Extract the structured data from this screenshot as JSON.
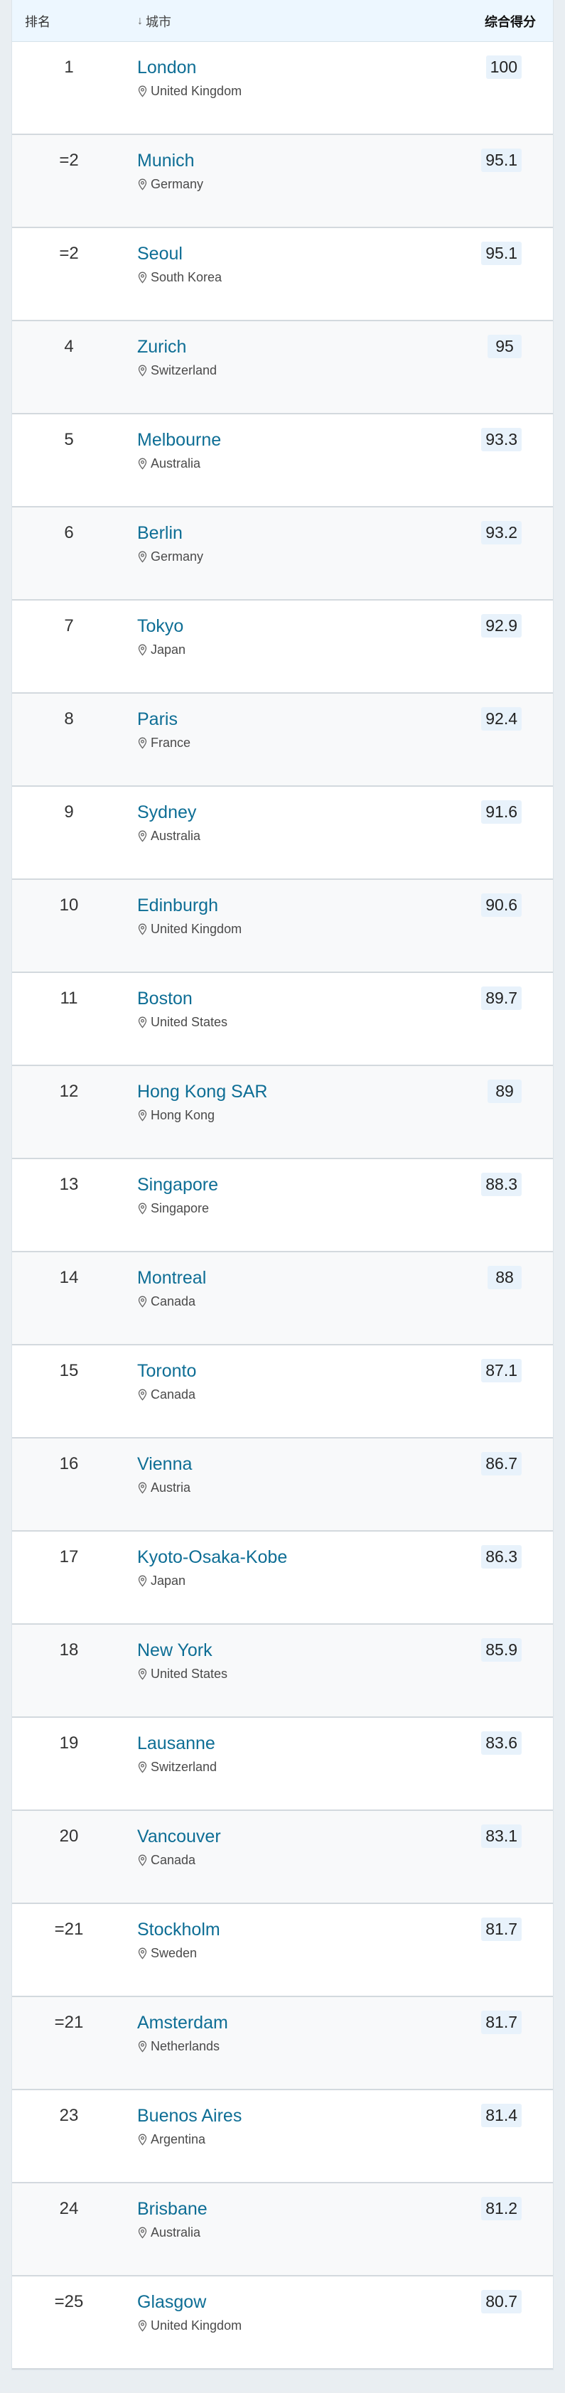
{
  "header": {
    "rank": "排名",
    "city": "城市",
    "score": "综合得分",
    "sort_icon": "arrow-down-icon"
  },
  "rows": [
    {
      "rank": "1",
      "city": "London",
      "country": "United Kingdom",
      "score": "100"
    },
    {
      "rank": "=2",
      "city": "Munich",
      "country": "Germany",
      "score": "95.1"
    },
    {
      "rank": "=2",
      "city": "Seoul",
      "country": "South Korea",
      "score": "95.1"
    },
    {
      "rank": "4",
      "city": "Zurich",
      "country": "Switzerland",
      "score": "95"
    },
    {
      "rank": "5",
      "city": "Melbourne",
      "country": "Australia",
      "score": "93.3"
    },
    {
      "rank": "6",
      "city": "Berlin",
      "country": "Germany",
      "score": "93.2"
    },
    {
      "rank": "7",
      "city": "Tokyo",
      "country": "Japan",
      "score": "92.9"
    },
    {
      "rank": "8",
      "city": "Paris",
      "country": "France",
      "score": "92.4"
    },
    {
      "rank": "9",
      "city": "Sydney",
      "country": "Australia",
      "score": "91.6"
    },
    {
      "rank": "10",
      "city": "Edinburgh",
      "country": "United Kingdom",
      "score": "90.6"
    },
    {
      "rank": "11",
      "city": "Boston",
      "country": "United States",
      "score": "89.7"
    },
    {
      "rank": "12",
      "city": "Hong Kong SAR",
      "country": "Hong Kong",
      "score": "89"
    },
    {
      "rank": "13",
      "city": "Singapore",
      "country": "Singapore",
      "score": "88.3"
    },
    {
      "rank": "14",
      "city": "Montreal",
      "country": "Canada",
      "score": "88"
    },
    {
      "rank": "15",
      "city": "Toronto",
      "country": "Canada",
      "score": "87.1"
    },
    {
      "rank": "16",
      "city": "Vienna",
      "country": "Austria",
      "score": "86.7"
    },
    {
      "rank": "17",
      "city": "Kyoto-Osaka-Kobe",
      "country": "Japan",
      "score": "86.3"
    },
    {
      "rank": "18",
      "city": "New York",
      "country": "United States",
      "score": "85.9"
    },
    {
      "rank": "19",
      "city": "Lausanne",
      "country": "Switzerland",
      "score": "83.6"
    },
    {
      "rank": "20",
      "city": "Vancouver",
      "country": "Canada",
      "score": "83.1"
    },
    {
      "rank": "=21",
      "city": "Stockholm",
      "country": "Sweden",
      "score": "81.7"
    },
    {
      "rank": "=21",
      "city": "Amsterdam",
      "country": "Netherlands",
      "score": "81.7"
    },
    {
      "rank": "23",
      "city": "Buenos Aires",
      "country": "Argentina",
      "score": "81.4"
    },
    {
      "rank": "24",
      "city": "Brisbane",
      "country": "Australia",
      "score": "81.2"
    },
    {
      "rank": "=25",
      "city": "Glasgow",
      "country": "United Kingdom",
      "score": "80.7"
    }
  ],
  "colors": {
    "link": "#0e6e95",
    "header_bg": "#edf7ff",
    "score_bg": "#e8f2fb"
  }
}
